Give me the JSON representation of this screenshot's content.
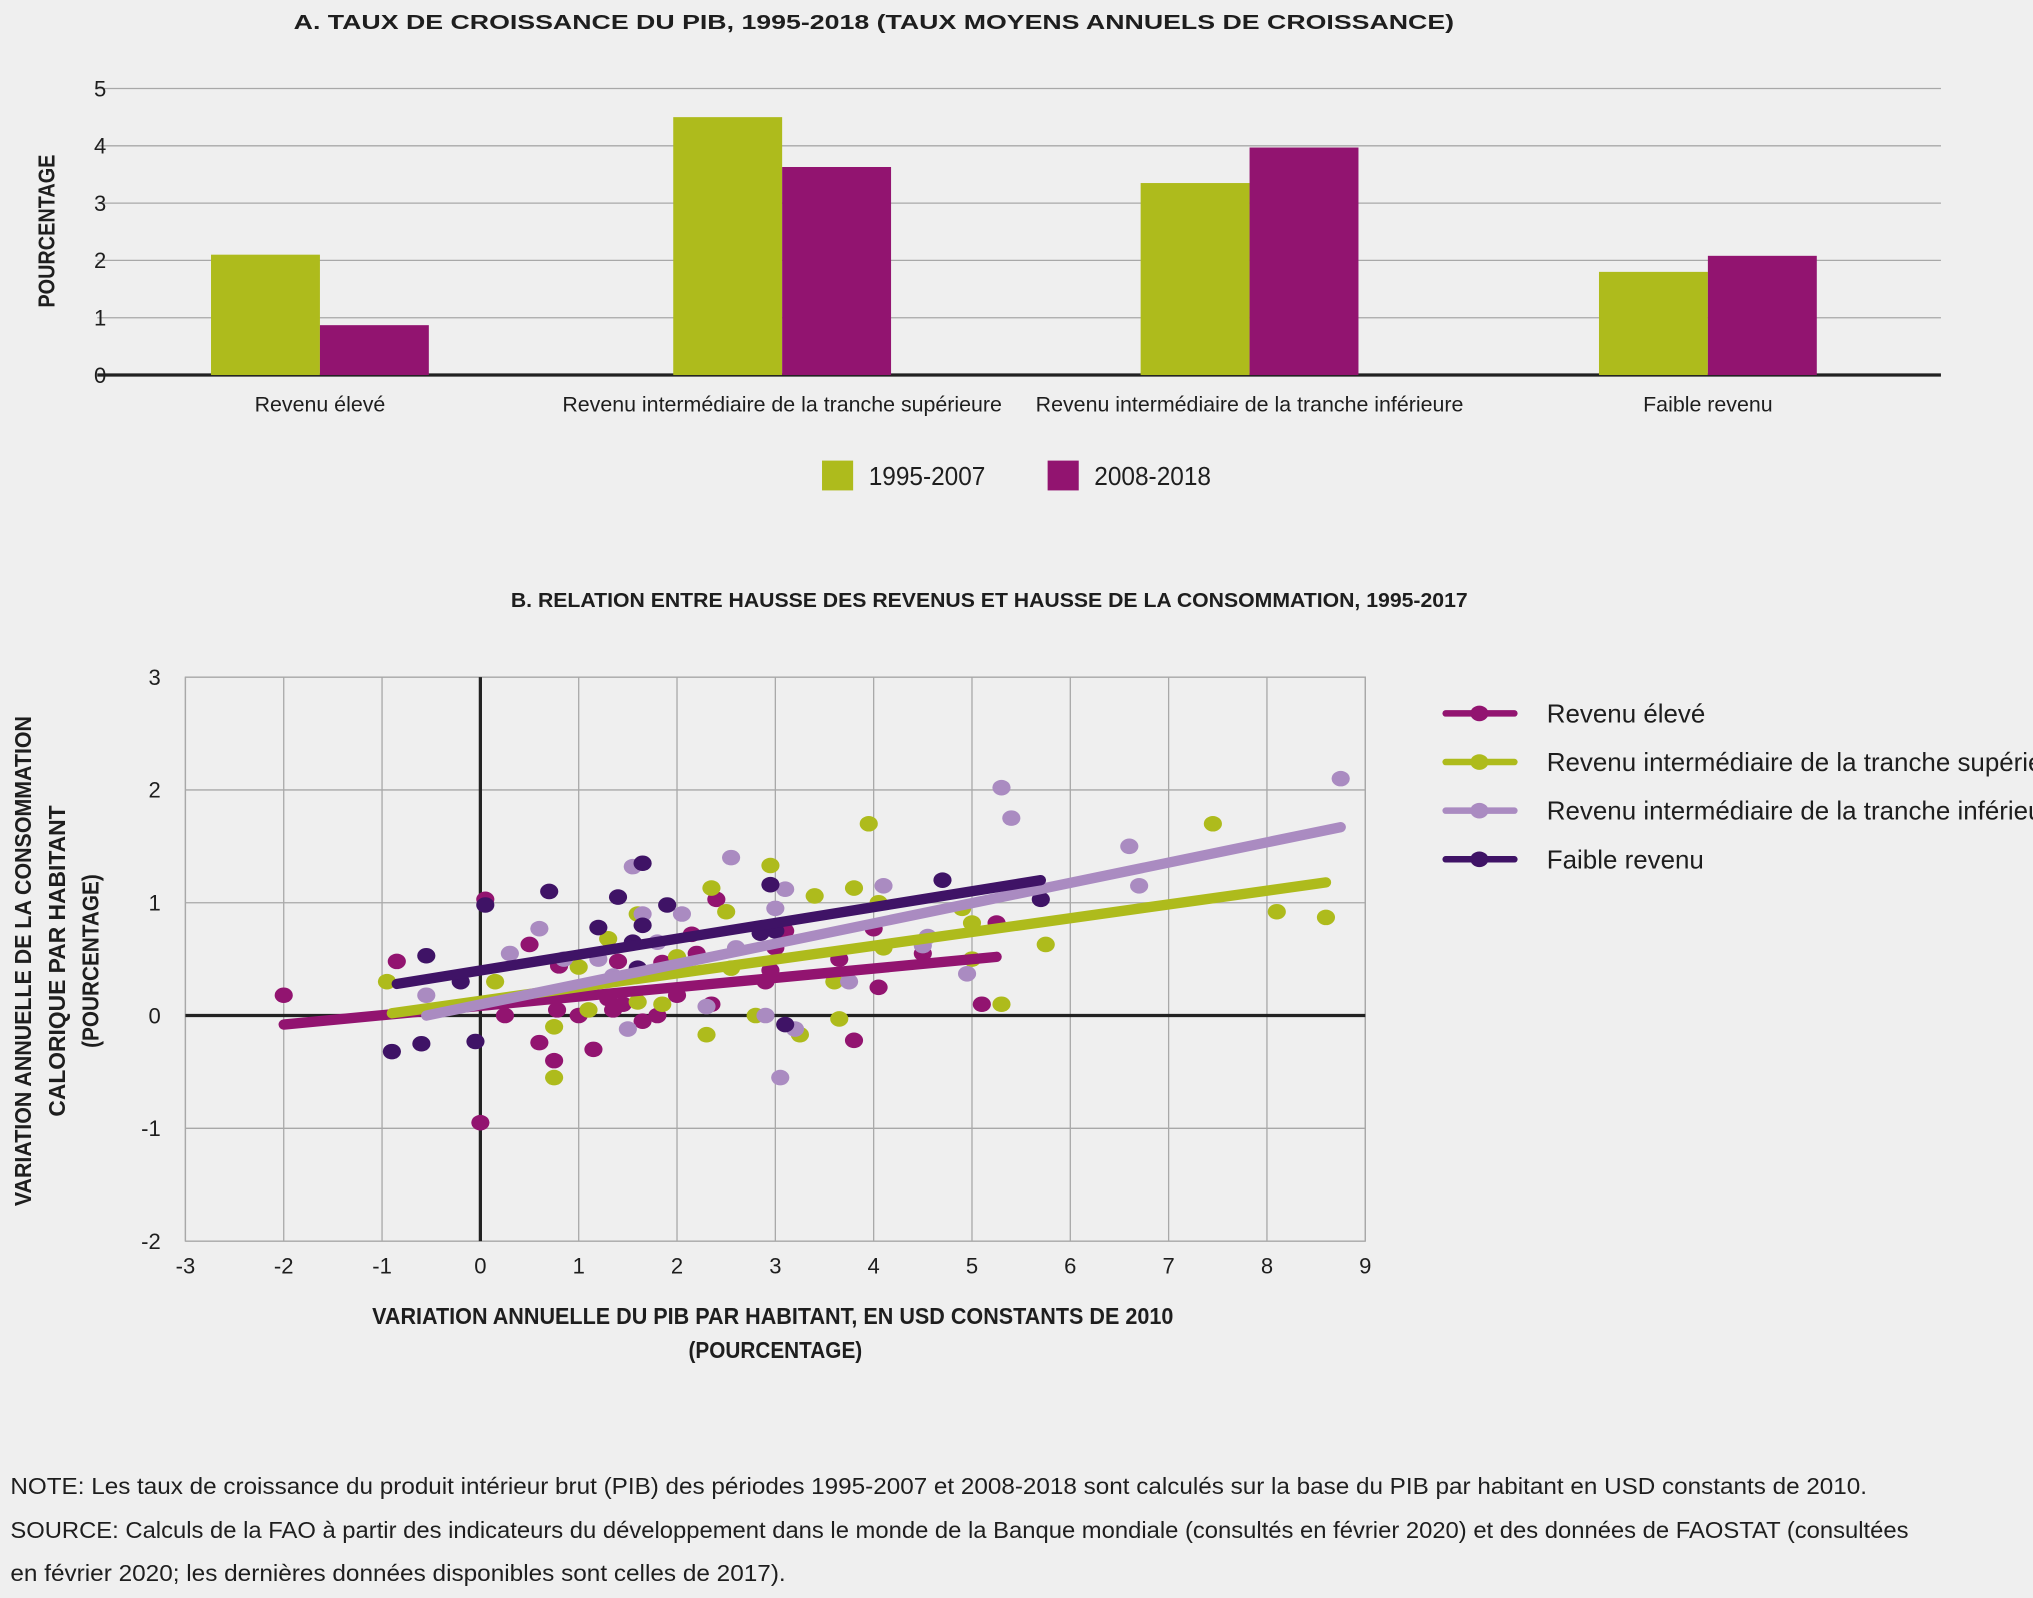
{
  "colors": {
    "series_1995_2007": "#aebb1c",
    "series_2008_2018": "#921470",
    "revenu_eleve": "#921470",
    "intermediaire_superieure": "#aebb1c",
    "intermediaire_inferieure": "#aa8bc1",
    "faible_revenu": "#3f1366",
    "background": "#efefef",
    "grid": "#a8a8a8",
    "axis": "#222222"
  },
  "chart_data": [
    {
      "type": "bar",
      "title": "A. TAUX DE CROISSANCE DU PIB, 1995-2018 (TAUX MOYENS ANNUELS DE CROISSANCE)",
      "xlabel": "",
      "ylabel": "POURCENTAGE",
      "ylim": [
        0,
        5
      ],
      "yticks": [
        "0",
        "1",
        "2",
        "3",
        "4",
        "5"
      ],
      "grid": true,
      "legend_position": "bottom",
      "categories": [
        "Revenu élevé",
        "Revenu intermédiaire de la tranche supérieure",
        "Revenu intermédiaire de la tranche inférieure",
        "Faible revenu"
      ],
      "series": [
        {
          "name": "1995-2007",
          "values": [
            2.1,
            4.5,
            3.35,
            1.8
          ]
        },
        {
          "name": "2008-2018",
          "values": [
            0.87,
            3.63,
            3.97,
            2.08
          ]
        }
      ]
    },
    {
      "type": "scatter",
      "title": "B. RELATION ENTRE HAUSSE DES REVENUS ET HAUSSE DE LA CONSOMMATION, 1995-2017",
      "xlabel": [
        "VARIATION ANNUELLE DU PIB PAR HABITANT, EN USD CONSTANTS DE 2010",
        "(POURCENTAGE)"
      ],
      "ylabel": [
        "VARIATION ANNUELLE DE LA CONSOMMATION",
        "CALORIQUE PAR HABITANT",
        "(POURCENTAGE)"
      ],
      "xlim": [
        -3,
        9
      ],
      "ylim": [
        -2,
        3
      ],
      "xticks": [
        "-3",
        "-2",
        "-1",
        "0",
        "1",
        "2",
        "3",
        "4",
        "5",
        "6",
        "7",
        "8",
        "9"
      ],
      "yticks": [
        "3",
        "2",
        "1",
        "0",
        "-1",
        "-2"
      ],
      "grid": true,
      "legend_position": "right",
      "series": [
        {
          "name": "Revenu élevé",
          "color_key": "revenu_eleve",
          "trend": [
            [
              -2.0,
              -0.08
            ],
            [
              5.25,
              0.52
            ]
          ],
          "points": [
            [
              -2.0,
              0.18
            ],
            [
              -0.85,
              0.48
            ],
            [
              0.05,
              1.03
            ],
            [
              0.0,
              -0.95
            ],
            [
              0.5,
              0.63
            ],
            [
              0.6,
              -0.24
            ],
            [
              0.75,
              -0.4
            ],
            [
              0.8,
              0.44
            ],
            [
              0.78,
              0.05
            ],
            [
              0.25,
              0.0
            ],
            [
              1.15,
              -0.3
            ],
            [
              1.0,
              0.0
            ],
            [
              1.3,
              0.15
            ],
            [
              1.35,
              0.05
            ],
            [
              1.45,
              0.1
            ],
            [
              1.65,
              -0.05
            ],
            [
              1.8,
              0.0
            ],
            [
              1.85,
              0.47
            ],
            [
              2.0,
              0.18
            ],
            [
              2.15,
              0.72
            ],
            [
              2.4,
              1.03
            ],
            [
              2.35,
              0.1
            ],
            [
              2.9,
              0.3
            ],
            [
              3.1,
              0.75
            ],
            [
              2.95,
              0.4
            ],
            [
              3.65,
              0.5
            ],
            [
              3.8,
              -0.22
            ],
            [
              4.0,
              0.77
            ],
            [
              4.05,
              0.25
            ],
            [
              4.5,
              0.55
            ],
            [
              5.1,
              0.1
            ],
            [
              5.25,
              0.82
            ],
            [
              1.4,
              0.48
            ],
            [
              2.2,
              0.55
            ],
            [
              3.0,
              0.6
            ]
          ]
        },
        {
          "name": "Revenu intermédiaire de la tranche supérieure",
          "color_key": "intermediaire_superieure",
          "trend": [
            [
              -0.9,
              0.02
            ],
            [
              8.6,
              1.18
            ]
          ],
          "points": [
            [
              -0.95,
              0.3
            ],
            [
              0.75,
              -0.1
            ],
            [
              0.75,
              -0.55
            ],
            [
              1.0,
              0.43
            ],
            [
              1.3,
              0.68
            ],
            [
              1.6,
              0.9
            ],
            [
              1.1,
              0.05
            ],
            [
              1.6,
              0.12
            ],
            [
              1.85,
              0.1
            ],
            [
              2.0,
              0.52
            ],
            [
              2.3,
              -0.17
            ],
            [
              2.35,
              1.13
            ],
            [
              2.5,
              0.92
            ],
            [
              2.55,
              0.42
            ],
            [
              2.95,
              1.33
            ],
            [
              3.25,
              -0.17
            ],
            [
              3.4,
              1.06
            ],
            [
              3.6,
              0.3
            ],
            [
              3.65,
              -0.03
            ],
            [
              3.8,
              1.13
            ],
            [
              3.95,
              1.7
            ],
            [
              4.05,
              1.0
            ],
            [
              4.1,
              0.6
            ],
            [
              4.9,
              0.95
            ],
            [
              5.0,
              0.82
            ],
            [
              5.0,
              0.5
            ],
            [
              5.3,
              0.1
            ],
            [
              5.75,
              0.63
            ],
            [
              7.45,
              1.7
            ],
            [
              8.1,
              0.92
            ],
            [
              8.6,
              0.87
            ],
            [
              2.8,
              0.0
            ],
            [
              0.15,
              0.3
            ]
          ]
        },
        {
          "name": "Revenu intermédiaire de la tranche inférieure",
          "color_key": "intermediaire_inferieure",
          "trend": [
            [
              -0.55,
              0.0
            ],
            [
              8.75,
              1.67
            ]
          ],
          "points": [
            [
              -0.55,
              0.18
            ],
            [
              0.3,
              0.55
            ],
            [
              0.6,
              0.77
            ],
            [
              0.85,
              0.5
            ],
            [
              1.2,
              0.5
            ],
            [
              1.55,
              1.32
            ],
            [
              1.65,
              0.9
            ],
            [
              1.5,
              -0.12
            ],
            [
              1.8,
              0.65
            ],
            [
              2.05,
              0.9
            ],
            [
              2.3,
              0.08
            ],
            [
              2.55,
              1.4
            ],
            [
              2.9,
              0.0
            ],
            [
              3.0,
              0.95
            ],
            [
              3.1,
              1.12
            ],
            [
              3.05,
              -0.55
            ],
            [
              3.2,
              -0.12
            ],
            [
              3.75,
              0.3
            ],
            [
              4.1,
              1.15
            ],
            [
              4.5,
              0.62
            ],
            [
              4.55,
              0.7
            ],
            [
              4.95,
              0.37
            ],
            [
              5.3,
              2.02
            ],
            [
              5.4,
              1.75
            ],
            [
              6.6,
              1.5
            ],
            [
              6.7,
              1.15
            ],
            [
              8.75,
              2.1
            ],
            [
              1.35,
              0.35
            ],
            [
              2.6,
              0.6
            ]
          ]
        },
        {
          "name": "Faible revenu",
          "color_key": "faible_revenu",
          "trend": [
            [
              -0.85,
              0.28
            ],
            [
              5.7,
              1.2
            ]
          ],
          "points": [
            [
              -0.9,
              -0.32
            ],
            [
              -0.6,
              -0.25
            ],
            [
              -0.55,
              0.53
            ],
            [
              -0.2,
              0.3
            ],
            [
              -0.05,
              -0.23
            ],
            [
              0.05,
              0.98
            ],
            [
              0.7,
              1.1
            ],
            [
              1.2,
              0.78
            ],
            [
              1.4,
              1.05
            ],
            [
              1.55,
              0.65
            ],
            [
              1.65,
              1.35
            ],
            [
              1.65,
              0.8
            ],
            [
              1.9,
              0.98
            ],
            [
              2.95,
              1.16
            ],
            [
              2.85,
              0.73
            ],
            [
              3.1,
              -0.08
            ],
            [
              4.7,
              1.2
            ],
            [
              5.7,
              1.03
            ],
            [
              1.6,
              0.42
            ],
            [
              3.0,
              0.75
            ]
          ]
        }
      ]
    }
  ],
  "notes": [
    "NOTE: Les taux de croissance du produit intérieur brut (PIB) des périodes 1995-2007 et 2008-2018 sont calculés sur la base du PIB par habitant en USD constants de 2010.",
    "SOURCE: Calculs de la FAO à partir des indicateurs du développement dans le monde de la Banque mondiale (consultés en février 2020) et des données de FAOSTAT (consultées",
    "en février 2020; les dernières données disponibles sont celles de 2017)."
  ]
}
